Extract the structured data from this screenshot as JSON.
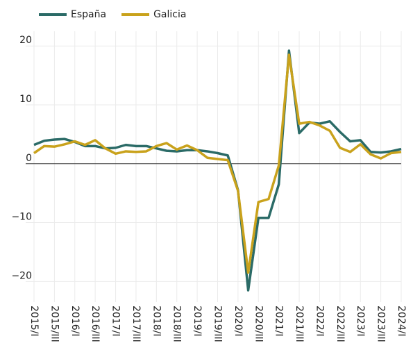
{
  "chart_data": {
    "type": "line",
    "categories": [
      "2015/I",
      null,
      "2015/III",
      null,
      "2016/I",
      null,
      "2016/III",
      null,
      "2017/I",
      null,
      "2017/III",
      null,
      "2018/I",
      null,
      "2018/III",
      null,
      "2019/I",
      null,
      "2019/III",
      null,
      "2020/I",
      null,
      "2020/III",
      null,
      "2021/I",
      null,
      "2021/III",
      null,
      "2022/I",
      null,
      "2022/III",
      null,
      "2023/I",
      null,
      "2023/III",
      null,
      "2024/I"
    ],
    "series": [
      {
        "name": "España",
        "color": "#2b6b67",
        "values": [
          3.2,
          3.9,
          4.1,
          4.2,
          3.7,
          3.0,
          3.0,
          2.6,
          2.7,
          3.2,
          3.0,
          3.0,
          2.6,
          2.2,
          2.1,
          2.3,
          2.3,
          2.1,
          1.8,
          1.4,
          -4.5,
          -21.5,
          -9.2,
          -9.2,
          -3.5,
          19.2,
          5.2,
          7.0,
          6.8,
          7.2,
          5.4,
          3.8,
          4.0,
          2.0,
          1.9,
          2.1,
          2.5
        ]
      },
      {
        "name": "Galicia",
        "color": "#c9a21c",
        "values": [
          1.8,
          3.0,
          2.9,
          3.3,
          3.8,
          3.2,
          4.0,
          2.6,
          1.7,
          2.1,
          2.0,
          2.1,
          3.0,
          3.5,
          2.4,
          3.1,
          2.3,
          1.0,
          0.8,
          0.6,
          -4.6,
          -18.5,
          -6.5,
          -6.0,
          -0.3,
          18.5,
          6.8,
          7.1,
          6.5,
          5.6,
          2.7,
          2.0,
          3.3,
          1.6,
          0.9,
          1.8,
          2.0
        ]
      }
    ],
    "ylim": [
      -23.5,
      22.5
    ],
    "yticks": [
      {
        "value": -20,
        "label": "−20"
      },
      {
        "value": -10,
        "label": "−10"
      },
      0,
      10,
      20
    ],
    "grid": true
  }
}
